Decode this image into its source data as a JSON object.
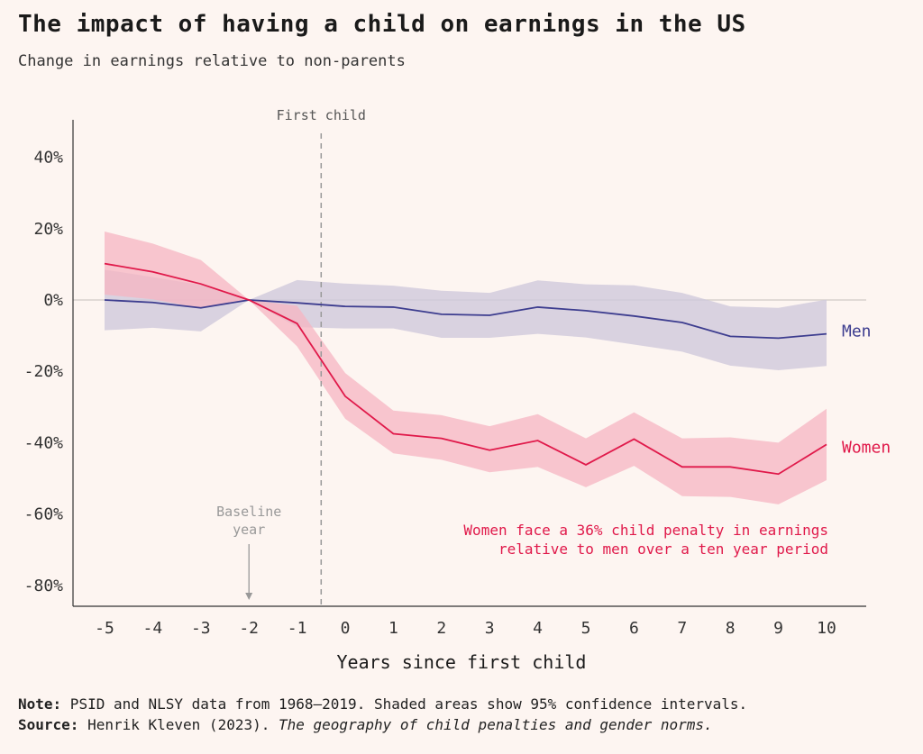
{
  "title": "The impact of having a child on earnings in the US",
  "subtitle": "Change in earnings relative to non-parents",
  "footer": {
    "note_label": "Note:",
    "note_text": " PSID and NLSY data from 1968–2019. Shaded areas show 95% confidence intervals.",
    "source_label": "Source:",
    "source_text": " Henrik Kleven (2023). ",
    "source_title": "The geography of child penalties and gender norms."
  },
  "colors": {
    "background": "#fdf5f1",
    "men": "#3d3d8f",
    "men_band": "#cfc9dc",
    "women": "#e0194a",
    "women_band": "#f6b4c2",
    "axis": "#333333",
    "zero_line": "#d8d2ce",
    "event_line": "#999999"
  },
  "chart_data": {
    "type": "line",
    "xlabel": "Years since first child",
    "ylabel": "",
    "x": [
      -5,
      -4,
      -3,
      -2,
      -1,
      0,
      1,
      2,
      3,
      4,
      5,
      6,
      7,
      8,
      9,
      10
    ],
    "x_tick_labels": [
      "-5",
      "-4",
      "-3",
      "-2",
      "-1",
      "0",
      "1",
      "2",
      "3",
      "4",
      "5",
      "6",
      "7",
      "8",
      "9",
      "10"
    ],
    "ylim": [
      -85,
      50
    ],
    "y_ticks": [
      40,
      20,
      0,
      -20,
      -40,
      -60,
      -80
    ],
    "y_tick_labels": [
      "40%",
      "20%",
      "0%",
      "-20%",
      "-40%",
      "-60%",
      "-80%"
    ],
    "series": [
      {
        "name": "Men",
        "values": [
          0,
          -0.7,
          -2.2,
          0,
          -0.8,
          -1.8,
          -2.0,
          -4.0,
          -4.3,
          -2.0,
          -3.0,
          -4.5,
          -6.3,
          -10.2,
          -10.7,
          -9.5
        ],
        "ci_lower": [
          -8.5,
          -7.8,
          -8.8,
          0,
          -7.6,
          -8.0,
          -8.0,
          -10.6,
          -10.6,
          -9.5,
          -10.5,
          -12.5,
          -14.5,
          -18.4,
          -19.7,
          -18.5
        ],
        "ci_upper": [
          8.5,
          6.4,
          4.2,
          0,
          5.6,
          4.6,
          4.0,
          2.6,
          2.0,
          5.5,
          4.4,
          4.1,
          2.0,
          -1.8,
          -2.2,
          0.1
        ]
      },
      {
        "name": "Women",
        "values": [
          10.2,
          7.9,
          4.5,
          0,
          -6.6,
          -27.0,
          -37.5,
          -38.8,
          -42.1,
          -39.4,
          -46.2,
          -39.0,
          -46.8,
          -46.8,
          -48.8,
          -40.5
        ],
        "ci_lower": [
          1.5,
          0.2,
          -2.3,
          0,
          -13.0,
          -33.3,
          -43.0,
          -44.8,
          -48.3,
          -46.8,
          -52.5,
          -46.5,
          -55.0,
          -55.2,
          -57.3,
          -50.5
        ],
        "ci_upper": [
          19.2,
          15.8,
          11.2,
          0,
          -1.6,
          -20.5,
          -31.0,
          -32.3,
          -35.4,
          -32.0,
          -38.8,
          -31.5,
          -38.8,
          -38.5,
          -40.0,
          -30.5
        ]
      }
    ],
    "event_line": {
      "x": -0.5,
      "label": "First child"
    },
    "baseline_annotation": {
      "x": -2,
      "line1": "Baseline",
      "line2": "year"
    },
    "annotation": {
      "line1": "Women face a 36% child penalty in earnings",
      "line2": "relative to men over a ten year period"
    },
    "grid": false,
    "legend": "inline-right"
  }
}
